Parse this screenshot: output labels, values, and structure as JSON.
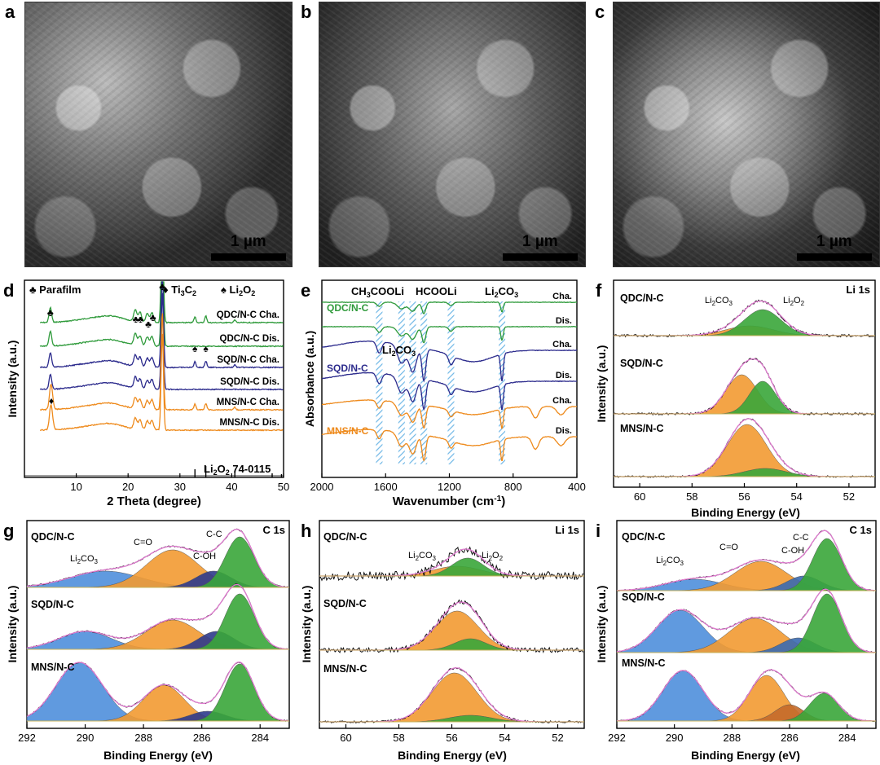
{
  "panels_top": [
    {
      "label": "a",
      "scale": "1 µm"
    },
    {
      "label": "b",
      "scale": "1 µm"
    },
    {
      "label": "c",
      "scale": "1 µm"
    }
  ],
  "panel_labels": {
    "d": "d",
    "e": "e",
    "f": "f",
    "g": "g",
    "h": "h",
    "i": "i"
  },
  "chart_data": [
    {
      "id": "d",
      "type": "line",
      "xlabel": "2 Theta (degree)",
      "ylabel": "Intensity (a.u.)",
      "xlim": [
        0,
        50
      ],
      "xticks": [
        10,
        20,
        30,
        40,
        50
      ],
      "legend": {
        "parafilm": "Parafilm",
        "ti3c2": "Ti",
        "ti3c2_sub": "3",
        "ti3c2_end": "C",
        "ti3c2_sub2": "2",
        "li2o2": "Li",
        "li2o2_sub": "2",
        "li2o2_o": "O",
        "li2o2_sub2": "2"
      },
      "series": [
        {
          "name": "QDC/N-C Cha.",
          "color": "#2e9a3a"
        },
        {
          "name": "QDC/N-C Dis.",
          "color": "#2e9a3a"
        },
        {
          "name": "SQD/N-C Cha.",
          "color": "#2b2a8c"
        },
        {
          "name": "SQD/N-C Dis.",
          "color": "#2b2a8c"
        },
        {
          "name": "MNS/N-C Cha.",
          "color": "#ee8a1c"
        },
        {
          "name": "MNS/N-C Dis.",
          "color": "#ee8a1c"
        }
      ],
      "reference": {
        "name": "Li",
        "sub": "2",
        "o": "O",
        "sub2": "2",
        "code": "74-0115",
        "sticks": [
          32.9,
          35.0,
          40.6,
          47.8,
          49.6
        ]
      },
      "peaks_parafilm": [
        5.0,
        21.2,
        22.0,
        23.6,
        24.6,
        26.6
      ]
    },
    {
      "id": "e",
      "type": "line",
      "xlabel": "Wavenumber (cm",
      "xlabel_sup": "-1",
      "xlabel_end": ")",
      "ylabel": "Absorbance (a.u.)",
      "xlim": [
        2000,
        400
      ],
      "xticks": [
        2000,
        1600,
        1200,
        800,
        400
      ],
      "annotations": {
        "ch3cooli_a": "CH",
        "ch3cooli_sub": "3",
        "ch3cooli_b": "COOLi",
        "hcooli": "HCOOLi",
        "li2co3_a": "Li",
        "li2co3_sub": "2",
        "li2co3_b": "CO",
        "li2co3_sub2": "3"
      },
      "groups": [
        {
          "name": "QDC/N-C",
          "color": "#2e9a3a"
        },
        {
          "name": "SQD/N-C",
          "color": "#2b2a8c"
        },
        {
          "name": "MNS/N-C",
          "color": "#ee8a1c"
        }
      ],
      "cha": "Cha.",
      "dis": "Dis.",
      "bands": [
        1640,
        1500,
        1430,
        1360,
        1190,
        870
      ]
    },
    {
      "id": "f",
      "type": "area",
      "title": "Li 1s",
      "xlabel": "Binding Energy (eV)",
      "ylabel": "Intensity (a.u.)",
      "xlim": [
        61,
        51
      ],
      "xticks": [
        60,
        58,
        56,
        54,
        52
      ],
      "samples": [
        "QDC/N-C",
        "SQD/N-C",
        "MNS/N-C"
      ],
      "labels": {
        "li2co3_a": "Li",
        "li2co3_sub": "2",
        "li2co3_b": "CO",
        "li2co3_sub2": "3",
        "li2o2_a": "Li",
        "li2o2_sub": "2",
        "li2o2_b": "O",
        "li2o2_sub2": "2"
      },
      "components": [
        {
          "name": "Li2CO3",
          "center": 55.8,
          "color": "#f29a32"
        },
        {
          "name": "Li2O2",
          "center": 55.3,
          "color": "#3aa63a"
        }
      ]
    },
    {
      "id": "g",
      "type": "area",
      "title": "C 1s",
      "xlabel": "Binding Energy (eV)",
      "ylabel": "Intensity (a.u.)",
      "xlim": [
        292,
        283
      ],
      "xticks": [
        292,
        290,
        288,
        286,
        284
      ],
      "samples": [
        "QDC/N-C",
        "SQD/N-C",
        "MNS/N-C"
      ],
      "labels": {
        "li2co3_a": "Li",
        "li2co3_sub": "2",
        "li2co3_b": "CO",
        "li2co3_sub2": "3",
        "co": "C=O",
        "coh": "C-OH",
        "cc": "C-C"
      },
      "components": [
        {
          "name": "Li2CO3",
          "center": 289.8,
          "color": "#4f8fdc"
        },
        {
          "name": "C=O",
          "center": 287.2,
          "color": "#f29a32"
        },
        {
          "name": "C-OH",
          "center": 285.6,
          "color": "#2e3a8c"
        },
        {
          "name": "C-C",
          "center": 284.7,
          "color": "#3aa63a"
        }
      ]
    },
    {
      "id": "h",
      "type": "area",
      "title": "Li 1s",
      "xlabel": "Binding Energy (eV)",
      "ylabel": "Intensity (a.u.)",
      "xlim": [
        61,
        51
      ],
      "xticks": [
        60,
        58,
        56,
        54,
        52
      ],
      "samples": [
        "QDC/N-C",
        "SQD/N-C",
        "MNS/N-C"
      ],
      "labels": {
        "li2co3_a": "Li",
        "li2co3_sub": "2",
        "li2co3_b": "CO",
        "li2co3_sub2": "3",
        "li2o2_a": "Li",
        "li2o2_sub": "2",
        "li2o2_b": "O",
        "li2o2_sub2": "2"
      }
    },
    {
      "id": "i",
      "type": "area",
      "title": "C 1s",
      "xlabel": "Binding Energy (eV)",
      "ylabel": "Intensity (a.u.)",
      "xlim": [
        292,
        283
      ],
      "xticks": [
        292,
        290,
        288,
        286,
        284
      ],
      "samples": [
        "QDC/N-C",
        "SQD/N-C",
        "MNS/N-C"
      ],
      "labels": {
        "li2co3_a": "Li",
        "li2co3_sub": "2",
        "li2co3_b": "CO",
        "li2co3_sub2": "3",
        "co": "C=O",
        "coh": "C-OH",
        "cc": "C-C"
      }
    }
  ]
}
